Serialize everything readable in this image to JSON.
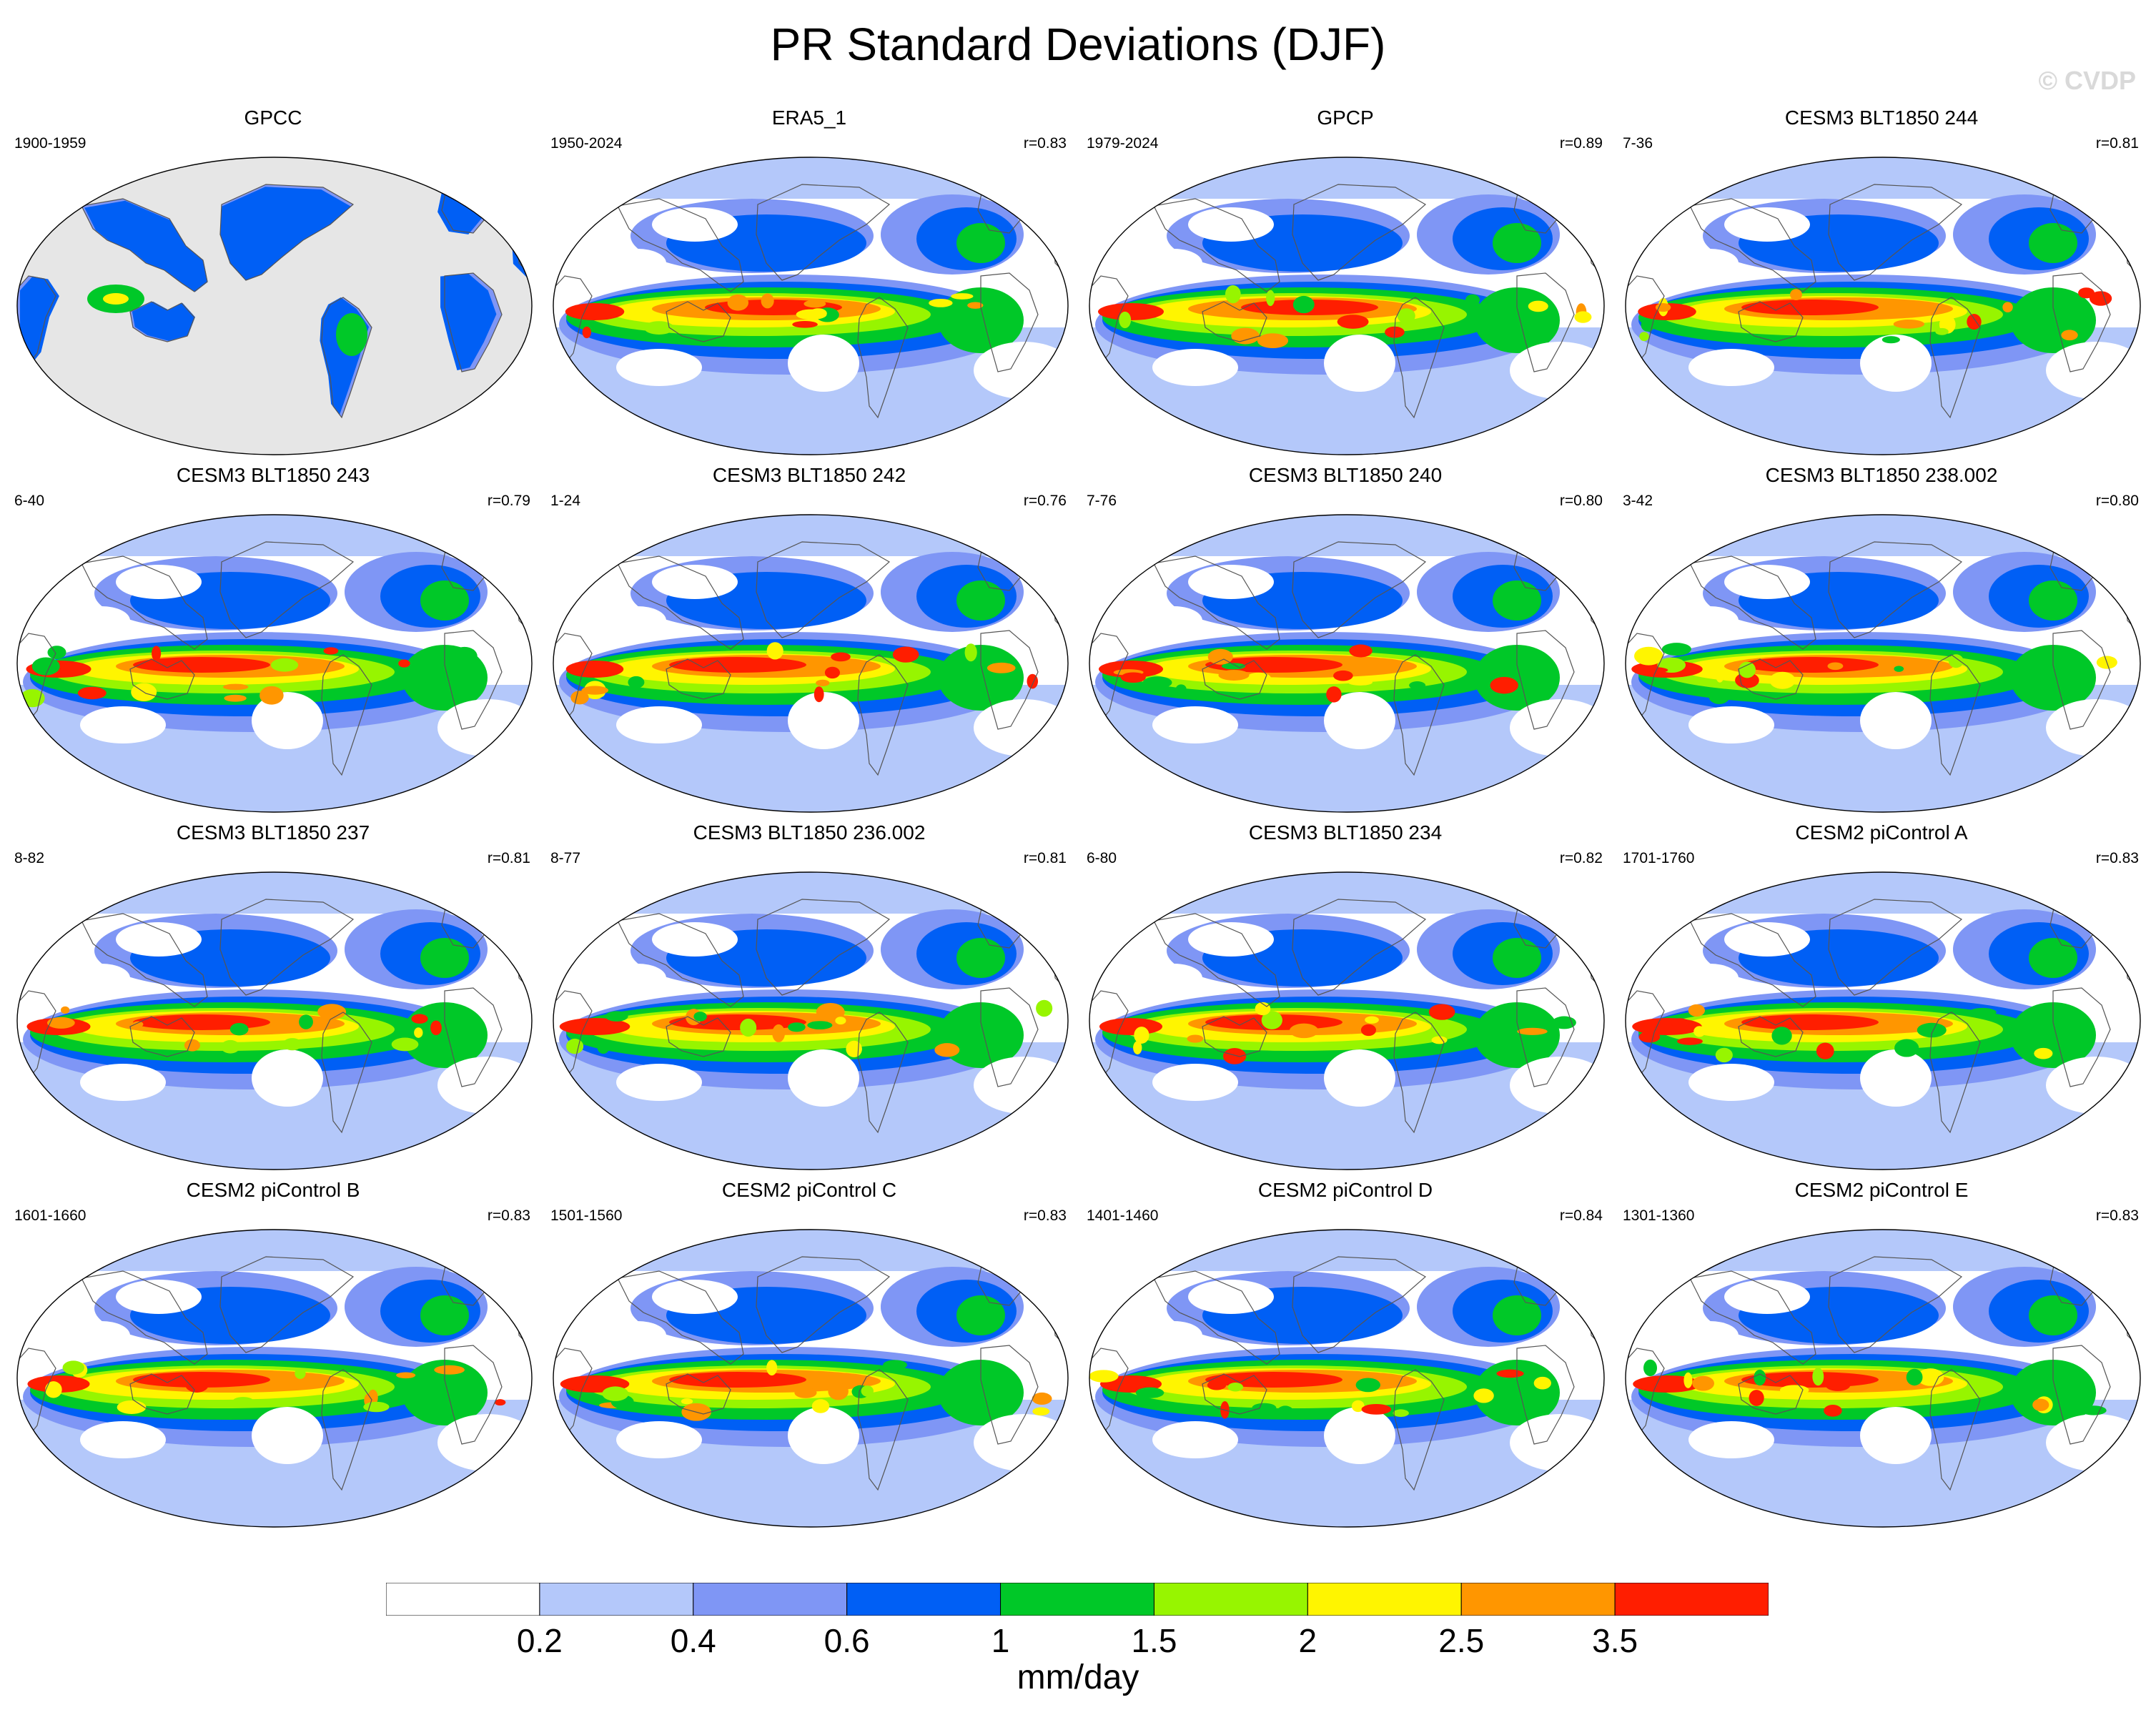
{
  "title": "PR Standard Deviations (DJF)",
  "watermark": "© CVDP",
  "colors": {
    "levels": [
      "#ffffff",
      "#b4c8fa",
      "#7f96f5",
      "#005ff5",
      "#00c828",
      "#97f500",
      "#fff500",
      "#ff9600",
      "#ff1e00"
    ],
    "land": "#e6e6e6",
    "coast": "#555555"
  },
  "colorbar": {
    "labels": [
      "0.2",
      "0.4",
      "0.6",
      "1",
      "1.5",
      "2",
      "2.5",
      "3.5"
    ],
    "units": "mm/day"
  },
  "panels": [
    {
      "title": "GPCC",
      "years": "1900-1959",
      "corr": "",
      "land_only": true
    },
    {
      "title": "ERA5_1",
      "years": "1950-2024",
      "corr": "r=0.83"
    },
    {
      "title": "GPCP",
      "years": "1979-2024",
      "corr": "r=0.89"
    },
    {
      "title": "CESM3 BLT1850 244",
      "years": "7-36",
      "corr": "r=0.81"
    },
    {
      "title": "CESM3 BLT1850 243",
      "years": "6-40",
      "corr": "r=0.79"
    },
    {
      "title": "CESM3 BLT1850 242",
      "years": "1-24",
      "corr": "r=0.76"
    },
    {
      "title": "CESM3 BLT1850 240",
      "years": "7-76",
      "corr": "r=0.80"
    },
    {
      "title": "CESM3 BLT1850 238.002",
      "years": "3-42",
      "corr": "r=0.80"
    },
    {
      "title": "CESM3 BLT1850 237",
      "years": "8-82",
      "corr": "r=0.81"
    },
    {
      "title": "CESM3 BLT1850 236.002",
      "years": "8-77",
      "corr": "r=0.81"
    },
    {
      "title": "CESM3 BLT1850 234",
      "years": "6-80",
      "corr": "r=0.82"
    },
    {
      "title": "CESM2 piControl A",
      "years": "1701-1760",
      "corr": "r=0.83"
    },
    {
      "title": "CESM2 piControl B",
      "years": "1601-1660",
      "corr": "r=0.83"
    },
    {
      "title": "CESM2 piControl C",
      "years": "1501-1560",
      "corr": "r=0.83"
    },
    {
      "title": "CESM2 piControl D",
      "years": "1401-1460",
      "corr": "r=0.84"
    },
    {
      "title": "CESM2 piControl E",
      "years": "1301-1360",
      "corr": "r=0.83"
    }
  ]
}
